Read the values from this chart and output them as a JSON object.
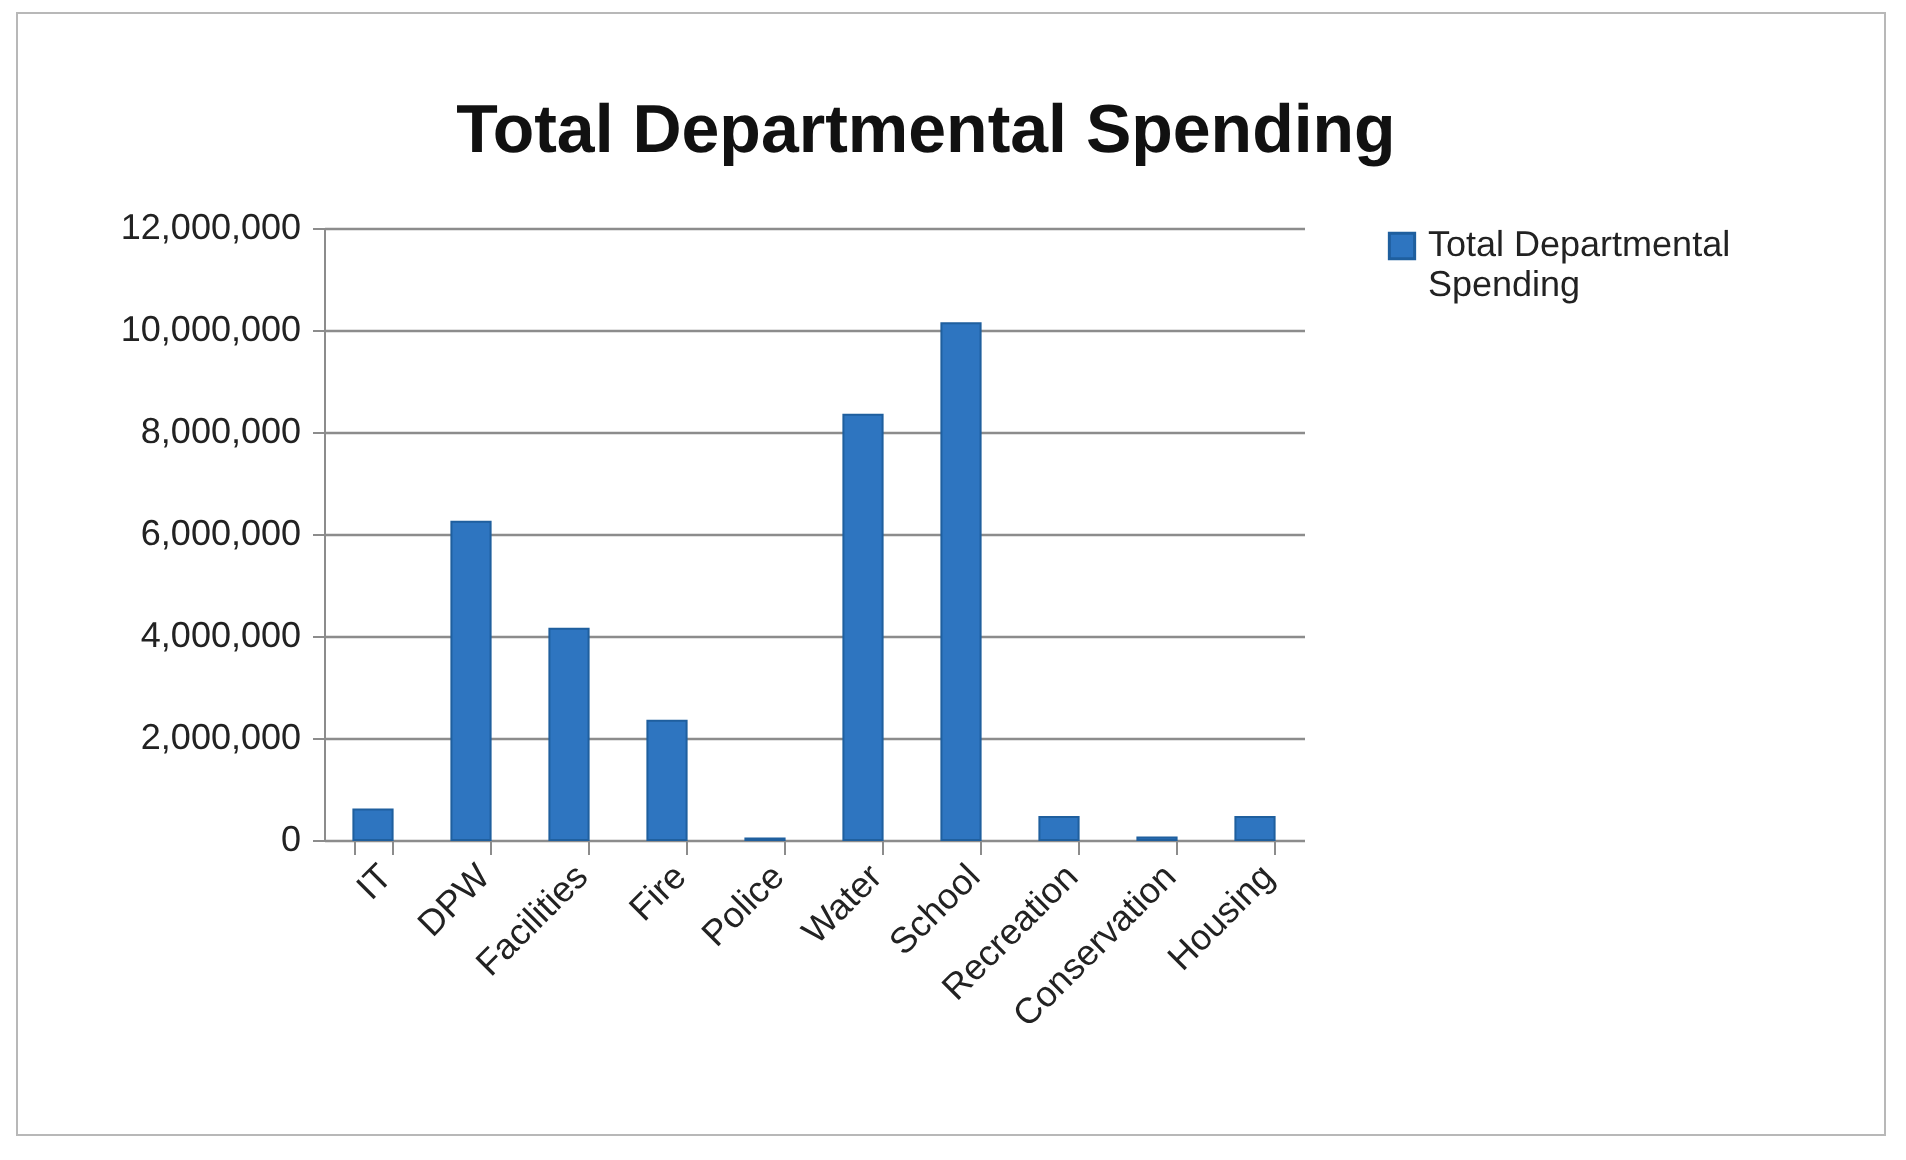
{
  "chart_data": {
    "type": "bar",
    "title": "Total Departmental Spending",
    "categories": [
      "IT",
      "DPW",
      "Facilities",
      "Fire",
      "Police",
      "Water",
      "School",
      "Recreation",
      "Conservation",
      "Housing"
    ],
    "series": [
      {
        "name": "Total Departmental Spending",
        "color": "#2e75c0",
        "values": [
          600000,
          6240000,
          4140000,
          2340000,
          30000,
          8340000,
          10130000,
          450000,
          50000,
          450000
        ]
      }
    ],
    "ylim": [
      0,
      12000000
    ],
    "yticks": [
      0,
      {
        "value": 2000000,
        "label": "2,000,000"
      },
      {
        "value": 4000000,
        "label": "4,000,000"
      },
      {
        "value": 6000000,
        "label": "6,000,000"
      },
      {
        "value": 8000000,
        "label": "8,000,000"
      },
      {
        "value": 10000000,
        "label": "10,000,000"
      },
      {
        "value": 12000000,
        "label": "12,000,000"
      }
    ],
    "grid": "y",
    "legend": "right"
  }
}
